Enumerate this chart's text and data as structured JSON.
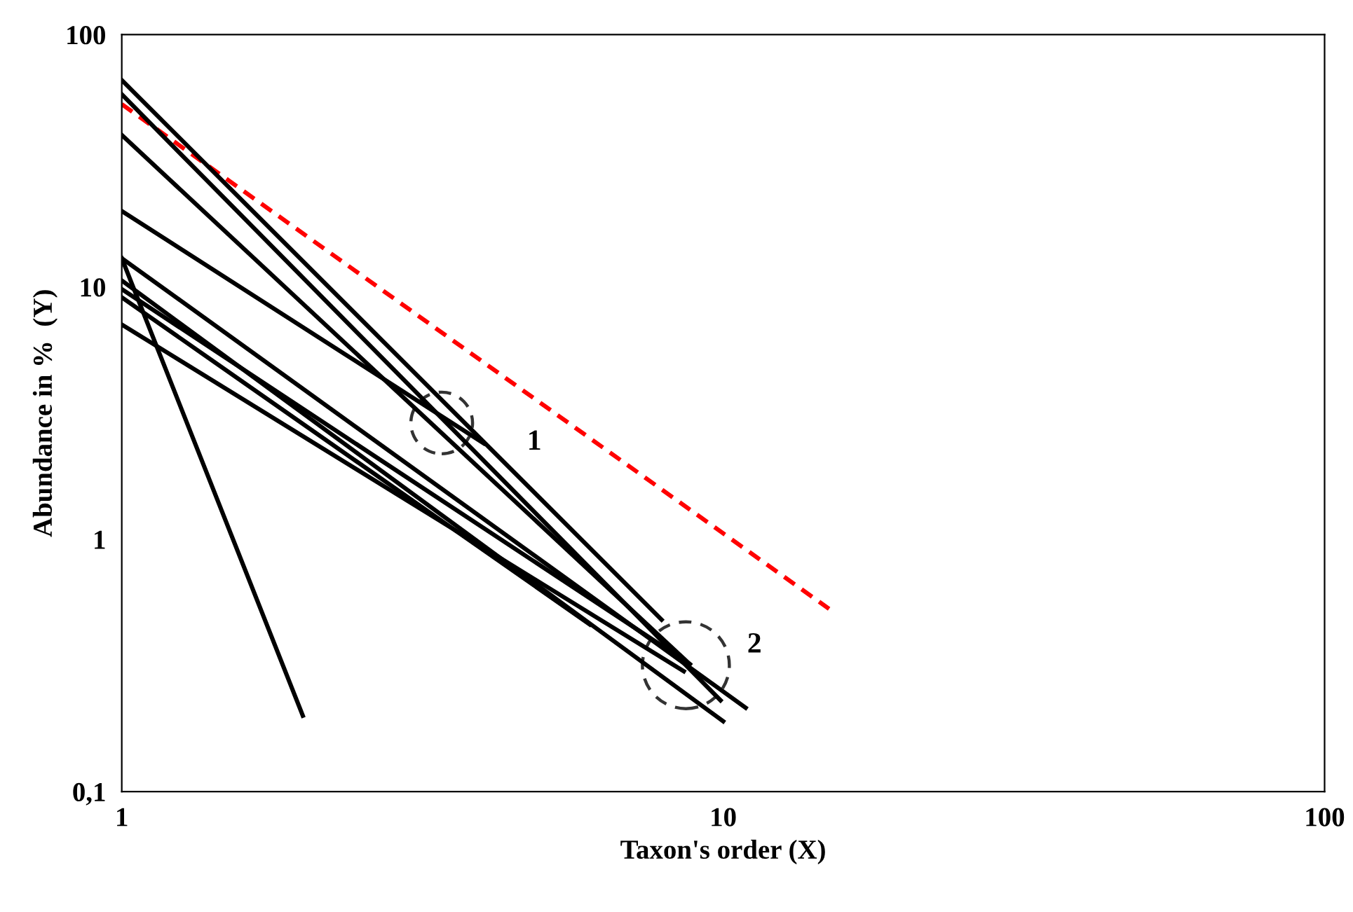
{
  "chart_data": {
    "type": "line",
    "xlabel": "Taxon's order (X)",
    "ylabel": "Abundance in %  (Y)",
    "log": "xy",
    "grid": false,
    "xlim": [
      1,
      100
    ],
    "ylim": [
      0.1,
      100
    ],
    "xticks": [
      1,
      10,
      100
    ],
    "yticks": [
      {
        "value": 0.1,
        "label": "0,1"
      },
      1,
      10,
      100
    ],
    "series": [
      {
        "color": "#ff0000",
        "line_style": "dashed",
        "x": [
          1,
          15
        ],
        "values": [
          53,
          0.53
        ]
      },
      {
        "color": "#000000",
        "x": [
          1,
          7.9
        ],
        "values": [
          66,
          0.48
        ]
      },
      {
        "color": "#000000",
        "x": [
          1,
          9.9
        ],
        "values": [
          58,
          0.23
        ]
      },
      {
        "color": "#000000",
        "x": [
          1,
          8.8
        ],
        "values": [
          40,
          0.32
        ]
      },
      {
        "color": "#000000",
        "x": [
          1,
          4
        ],
        "values": [
          20,
          2.4
        ]
      },
      {
        "color": "#000000",
        "x": [
          1,
          10.9
        ],
        "values": [
          13,
          0.215
        ]
      },
      {
        "color": "#000000",
        "x": [
          1,
          10
        ],
        "values": [
          10.6,
          0.19
        ]
      },
      {
        "color": "#000000",
        "x": [
          1,
          8.8
        ],
        "values": [
          9.8,
          0.32
        ]
      },
      {
        "color": "#000000",
        "x": [
          1,
          6
        ],
        "values": [
          9.1,
          0.46
        ]
      },
      {
        "color": "#000000",
        "x": [
          1,
          8.6
        ],
        "values": [
          7.1,
          0.3
        ]
      },
      {
        "color": "#000000",
        "x": [
          1,
          2
        ],
        "values": [
          13,
          0.2
        ]
      }
    ],
    "annotations": [
      "1",
      "2"
    ]
  }
}
